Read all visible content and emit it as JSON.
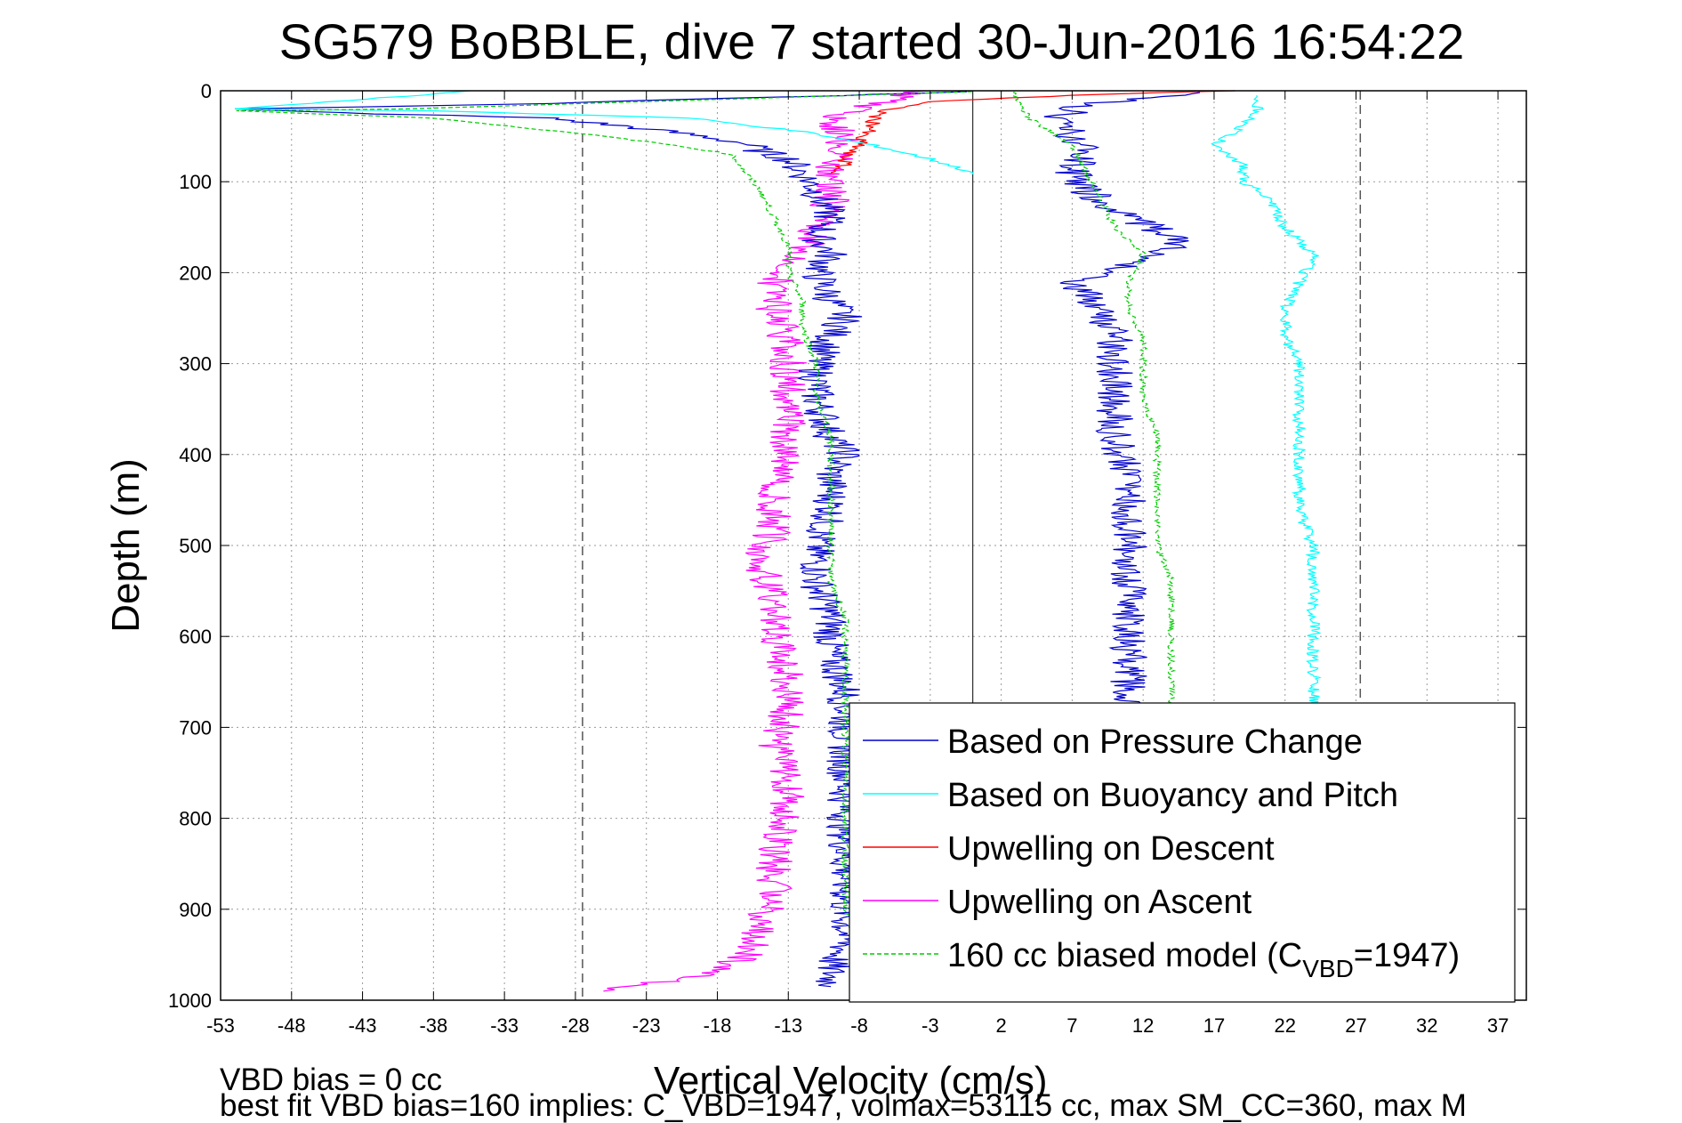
{
  "chart_data": {
    "type": "line",
    "title": "SG579 BoBBLE, dive 7 started 30-Jun-2016 16:54:22",
    "xlabel": "Vertical Velocity (cm/s)",
    "ylabel": "Depth (m)",
    "xlim": [
      -53,
      39
    ],
    "ylim": [
      1000,
      0
    ],
    "y_reversed": true,
    "grid": true,
    "legend_position": "bottom-right",
    "x_ticks": [
      -53,
      -48,
      -43,
      -38,
      -33,
      -28,
      -23,
      -18,
      -13,
      -8,
      -3,
      2,
      7,
      12,
      17,
      22,
      27,
      32,
      37
    ],
    "y_ticks": [
      0,
      100,
      200,
      300,
      400,
      500,
      600,
      700,
      800,
      900,
      1000
    ],
    "reference_lines": {
      "dashed_x": [
        -27.5,
        27.3
      ],
      "solid_x": [
        0
      ]
    },
    "series": [
      {
        "name": "Based on Pressure Change",
        "color": "#0000cc",
        "style": "solid",
        "points": [
          [
            0,
            1
          ],
          [
            -30,
            14
          ],
          [
            -52,
            20
          ],
          [
            -45,
            24
          ],
          [
            -30,
            30
          ],
          [
            -24,
            40
          ],
          [
            -19,
            50
          ],
          [
            -16,
            58
          ],
          [
            -15,
            66
          ],
          [
            -13,
            75
          ],
          [
            -12,
            90
          ],
          [
            -11,
            110
          ],
          [
            -10,
            140
          ],
          [
            -11,
            160
          ],
          [
            -10,
            180
          ],
          [
            -11,
            200
          ],
          [
            -10,
            230
          ],
          [
            -9,
            250
          ],
          [
            -10,
            270
          ],
          [
            -11,
            300
          ],
          [
            -11,
            340
          ],
          [
            -10,
            380
          ],
          [
            -9,
            400
          ],
          [
            -10,
            420
          ],
          [
            -10,
            460
          ],
          [
            -11,
            500
          ],
          [
            -11,
            540
          ],
          [
            -10,
            580
          ],
          [
            -10,
            620
          ],
          [
            -9,
            660
          ],
          [
            -9,
            700
          ],
          [
            -9,
            740
          ],
          [
            -9,
            780
          ],
          [
            -9,
            820
          ],
          [
            -9,
            860
          ],
          [
            -9,
            900
          ],
          [
            -9,
            940
          ],
          [
            -10,
            960
          ],
          [
            -10,
            985
          ]
        ],
        "points_ascent": [
          [
            8,
            985
          ],
          [
            9,
            960
          ],
          [
            9,
            940
          ],
          [
            10,
            900
          ],
          [
            11,
            860
          ],
          [
            11,
            820
          ],
          [
            11,
            780
          ],
          [
            11,
            740
          ],
          [
            11,
            700
          ],
          [
            11,
            660
          ],
          [
            11,
            620
          ],
          [
            11,
            580
          ],
          [
            11,
            540
          ],
          [
            11,
            500
          ],
          [
            11,
            460
          ],
          [
            11,
            420
          ],
          [
            10,
            380
          ],
          [
            10,
            340
          ],
          [
            10,
            300
          ],
          [
            10,
            270
          ],
          [
            9,
            240
          ],
          [
            7,
            210
          ],
          [
            11,
            190
          ],
          [
            15,
            165
          ],
          [
            11,
            140
          ],
          [
            8,
            110
          ],
          [
            7,
            90
          ],
          [
            8,
            70
          ],
          [
            7,
            50
          ],
          [
            6,
            30
          ],
          [
            8,
            15
          ],
          [
            16,
            2
          ]
        ]
      },
      {
        "name": "Based on Buoyancy and Pitch",
        "color": "#00ffff",
        "style": "solid",
        "points": [
          [
            -35,
            0
          ],
          [
            -52,
            20
          ],
          [
            -38,
            22
          ],
          [
            -20,
            30
          ],
          [
            -12,
            45
          ],
          [
            -7,
            60
          ],
          [
            -3,
            75
          ],
          [
            0,
            90
          ],
          [
            0,
            92
          ]
        ],
        "points_ascent": [
          [
            37,
            970
          ],
          [
            34,
            980
          ],
          [
            25,
            980
          ],
          [
            25,
            960
          ],
          [
            24,
            900
          ],
          [
            24,
            860
          ],
          [
            24,
            820
          ],
          [
            24,
            780
          ],
          [
            24,
            740
          ],
          [
            24,
            700
          ],
          [
            24,
            660
          ],
          [
            24,
            620
          ],
          [
            24,
            580
          ],
          [
            24,
            540
          ],
          [
            24,
            500
          ],
          [
            23,
            460
          ],
          [
            23,
            420
          ],
          [
            23,
            380
          ],
          [
            23,
            340
          ],
          [
            23,
            300
          ],
          [
            22,
            270
          ],
          [
            22,
            240
          ],
          [
            23,
            210
          ],
          [
            24,
            180
          ],
          [
            22,
            150
          ],
          [
            21,
            120
          ],
          [
            19,
            100
          ],
          [
            19,
            80
          ],
          [
            17,
            60
          ],
          [
            19,
            40
          ],
          [
            20,
            20
          ],
          [
            20,
            5
          ]
        ]
      },
      {
        "name": "Upwelling on Descent",
        "color": "#ff0000",
        "style": "solid",
        "points": [
          [
            18,
            0
          ],
          [
            7,
            5
          ],
          [
            -3,
            12
          ],
          [
            -6,
            20
          ],
          [
            -7,
            30
          ],
          [
            -7,
            40
          ],
          [
            -8,
            50
          ],
          [
            -8,
            60
          ],
          [
            -9,
            70
          ],
          [
            -9,
            80
          ],
          [
            -10,
            90
          ]
        ]
      },
      {
        "name": "Upwelling on Ascent",
        "color": "#ff00ff",
        "style": "solid",
        "points": [
          [
            -26,
            990
          ],
          [
            -18,
            970
          ],
          [
            -16,
            950
          ],
          [
            -15,
            920
          ],
          [
            -14,
            880
          ],
          [
            -14,
            840
          ],
          [
            -13,
            800
          ],
          [
            -13,
            760
          ],
          [
            -14,
            720
          ],
          [
            -13,
            680
          ],
          [
            -13,
            640
          ],
          [
            -14,
            600
          ],
          [
            -14,
            560
          ],
          [
            -15,
            520
          ],
          [
            -14,
            480
          ],
          [
            -14,
            440
          ],
          [
            -13,
            400
          ],
          [
            -13,
            360
          ],
          [
            -13,
            320
          ],
          [
            -13,
            280
          ],
          [
            -14,
            240
          ],
          [
            -14,
            210
          ],
          [
            -12,
            180
          ],
          [
            -11,
            150
          ],
          [
            -10,
            120
          ],
          [
            -10,
            90
          ],
          [
            -9,
            60
          ],
          [
            -10,
            30
          ],
          [
            -5,
            5
          ],
          [
            -3,
            0
          ]
        ]
      },
      {
        "name": "160 cc biased model (C_VBD=1947)",
        "color": "#00cc00",
        "style": "dashed",
        "points": [
          [
            0,
            1
          ],
          [
            -40,
            20
          ],
          [
            -52,
            22
          ],
          [
            -38,
            30
          ],
          [
            -32,
            40
          ],
          [
            -26,
            50
          ],
          [
            -21,
            60
          ],
          [
            -17,
            70
          ],
          [
            -16,
            90
          ],
          [
            -15,
            110
          ],
          [
            -14,
            140
          ],
          [
            -13,
            170
          ],
          [
            -13,
            200
          ],
          [
            -12,
            230
          ],
          [
            -12,
            260
          ],
          [
            -11,
            300
          ],
          [
            -11,
            340
          ],
          [
            -10,
            380
          ],
          [
            -10,
            420
          ],
          [
            -10,
            460
          ],
          [
            -10,
            500
          ],
          [
            -10,
            540
          ],
          [
            -9,
            580
          ],
          [
            -9,
            620
          ],
          [
            -9,
            660
          ],
          [
            -9,
            700
          ],
          [
            -9,
            740
          ],
          [
            -9,
            780
          ],
          [
            -9,
            820
          ],
          [
            -9,
            860
          ],
          [
            -9,
            900
          ],
          [
            -8,
            940
          ],
          [
            -8,
            985
          ]
        ],
        "points_ascent": [
          [
            -8,
            985
          ],
          [
            14,
            980
          ],
          [
            14,
            940
          ],
          [
            14,
            900
          ],
          [
            14,
            860
          ],
          [
            14,
            820
          ],
          [
            14,
            780
          ],
          [
            14,
            740
          ],
          [
            14,
            700
          ],
          [
            14,
            660
          ],
          [
            14,
            620
          ],
          [
            14,
            580
          ],
          [
            14,
            540
          ],
          [
            13,
            500
          ],
          [
            13,
            460
          ],
          [
            13,
            420
          ],
          [
            13,
            380
          ],
          [
            12,
            340
          ],
          [
            12,
            300
          ],
          [
            12,
            270
          ],
          [
            11,
            240
          ],
          [
            11,
            210
          ],
          [
            12,
            180
          ],
          [
            10,
            150
          ],
          [
            9,
            120
          ],
          [
            8,
            90
          ],
          [
            7,
            60
          ],
          [
            4,
            30
          ],
          [
            3,
            10
          ],
          [
            3,
            0
          ]
        ]
      }
    ],
    "legend": [
      {
        "label": "Based on Pressure Change",
        "color": "#0000cc",
        "dashed": false
      },
      {
        "label": "Based on Buoyancy and Pitch",
        "color": "#00ffff",
        "dashed": false
      },
      {
        "label": "Upwelling on Descent",
        "color": "#ff0000",
        "dashed": false
      },
      {
        "label": "Upwelling on Ascent",
        "color": "#ff00ff",
        "dashed": false
      },
      {
        "label": "160 cc biased model (C",
        "label_sub": "VBD",
        "label_tail": "=1947)",
        "color": "#00cc00",
        "dashed": true
      }
    ]
  },
  "annotations": {
    "line1": "VBD bias = 0 cc",
    "line2": "best fit VBD bias=160 implies: C_VBD=1947, volmax=53115 cc, max SM_CC=360, max M"
  }
}
